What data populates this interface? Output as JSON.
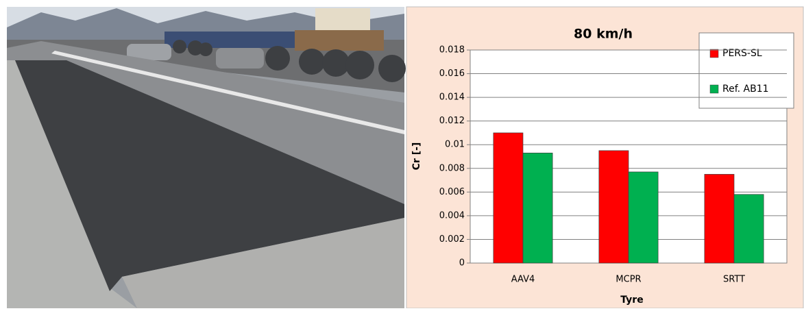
{
  "chart_data": {
    "type": "bar",
    "title": "80 km/h",
    "xlabel": "Tyre",
    "ylabel": "Cr [-]",
    "categories": [
      "AAV4",
      "MCPR",
      "SRTT"
    ],
    "series": [
      {
        "name": "PERS-SL",
        "color": "#ff0000",
        "values": [
          0.011,
          0.0095,
          0.0075
        ]
      },
      {
        "name": "Ref. AB11",
        "color": "#00b050",
        "values": [
          0.0093,
          0.0077,
          0.0058
        ]
      }
    ],
    "ylim": [
      0,
      0.018
    ],
    "yticks": [
      0,
      0.002,
      0.004,
      0.006,
      0.008,
      0.01,
      0.012,
      0.014,
      0.016,
      0.018
    ],
    "grid": true,
    "legend": "upper right"
  }
}
